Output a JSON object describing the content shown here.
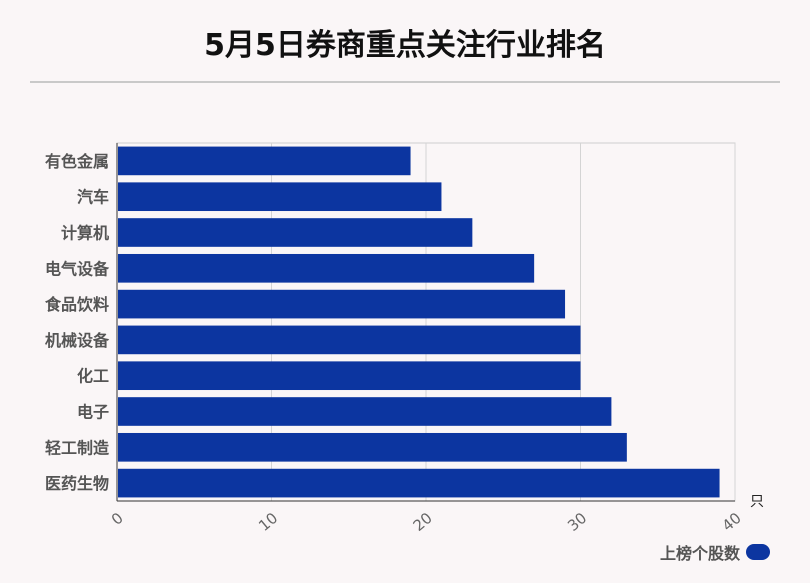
{
  "title": "5月5日券商重点关注行业排名",
  "chart_data": {
    "type": "bar",
    "orientation": "horizontal",
    "categories": [
      "有色金属",
      "汽车",
      "计算机",
      "电气设备",
      "食品饮料",
      "机械设备",
      "化工",
      "电子",
      "轻工制造",
      "医药生物"
    ],
    "series": [
      {
        "name": "上榜个股数",
        "values": [
          19,
          21,
          23,
          27,
          29,
          30,
          30,
          32,
          33,
          39
        ],
        "color": "#0c35a0"
      }
    ],
    "xlim": [
      0,
      40
    ],
    "xticks": [
      0,
      10,
      20,
      30,
      40
    ],
    "xunit": "只",
    "grid": true,
    "legend_position": "bottom-right"
  }
}
